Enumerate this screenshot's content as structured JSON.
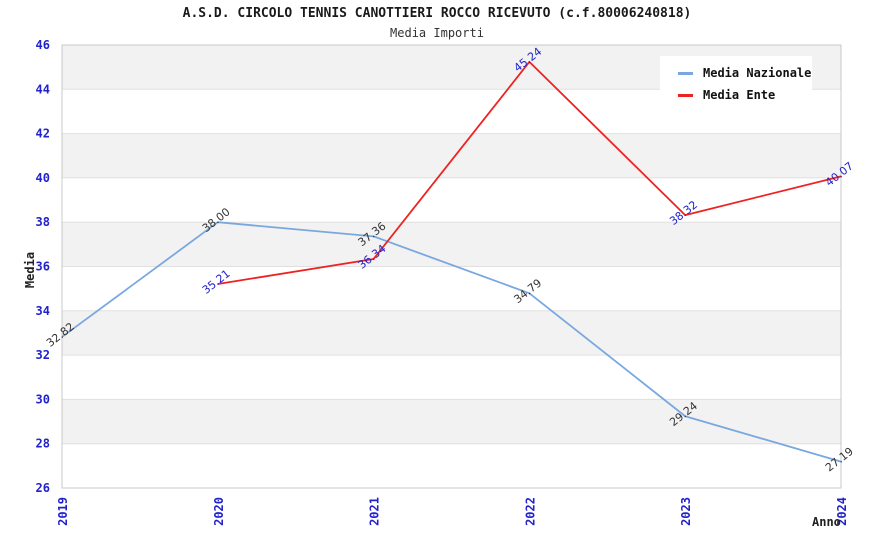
{
  "chart_data": {
    "type": "line",
    "title": "A.S.D. CIRCOLO TENNIS CANOTTIERI ROCCO RICEVUTO (c.f.80006240818)",
    "subtitle": "Media Importi",
    "xlabel": "Anno",
    "ylabel": "Media",
    "categories": [
      "2019",
      "2020",
      "2021",
      "2022",
      "2023",
      "2024"
    ],
    "ylim": [
      26,
      46
    ],
    "ytick_step": 2,
    "grid": "horizontal-bands",
    "legend_position": "top-right",
    "series": [
      {
        "name": "Media Nazionale",
        "color": "#79a8e0",
        "label_color": "#333333",
        "values": [
          32.82,
          38.0,
          37.36,
          34.79,
          29.24,
          27.19
        ]
      },
      {
        "name": "Media Ente",
        "color": "#ee2222",
        "label_color": "#2222cc",
        "values": [
          null,
          35.21,
          36.34,
          45.24,
          38.32,
          40.07
        ]
      }
    ],
    "colors": {
      "band": "#f2f2f2",
      "grid": "#e0e0e0",
      "border": "#c8c8c8",
      "tick_label": "#2222cc",
      "background": "#ffffff"
    }
  }
}
